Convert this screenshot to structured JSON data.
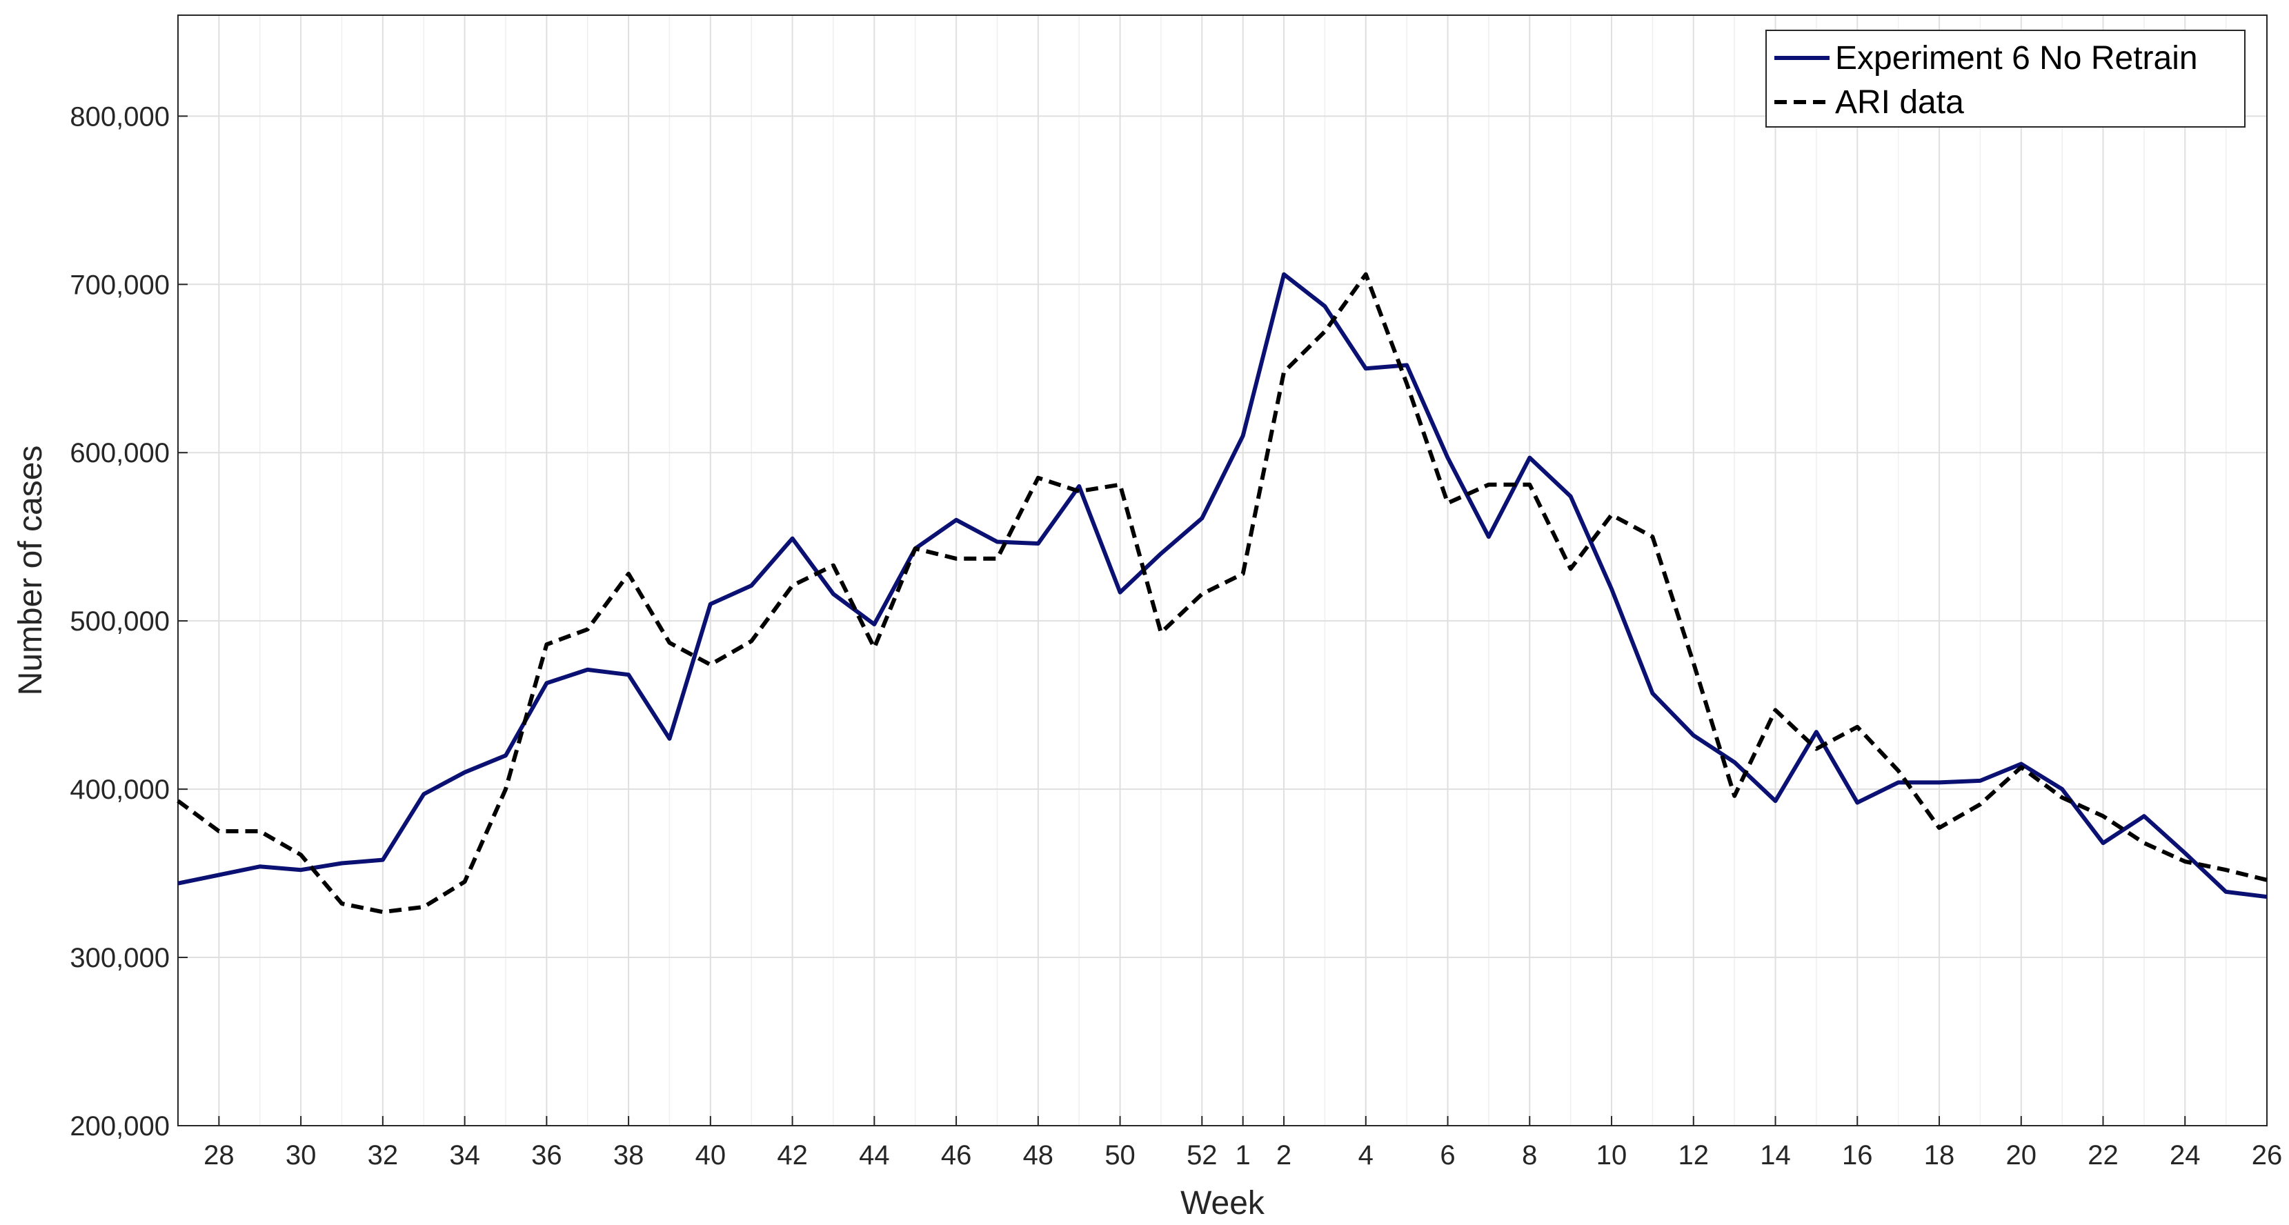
{
  "chart_data": {
    "type": "line",
    "xlabel": "Week",
    "ylabel": "Number of cases",
    "ylim": [
      200000,
      860000
    ],
    "yticks": [
      200000,
      300000,
      400000,
      500000,
      600000,
      700000,
      800000
    ],
    "ytick_labels": [
      "200,000",
      "300,000",
      "400,000",
      "500,000",
      "600,000",
      "700,000",
      "800,000"
    ],
    "x": [
      "27",
      "28",
      "29",
      "30",
      "31",
      "32",
      "33",
      "34",
      "35",
      "36",
      "37",
      "38",
      "39",
      "40",
      "41",
      "42",
      "43",
      "44",
      "45",
      "46",
      "47",
      "48",
      "49",
      "50",
      "51",
      "52",
      "1",
      "2",
      "3",
      "4",
      "5",
      "6",
      "7",
      "8",
      "9",
      "10",
      "11",
      "12",
      "13",
      "14",
      "15",
      "16",
      "17",
      "18",
      "19",
      "20",
      "21",
      "22",
      "23",
      "24",
      "25",
      "26"
    ],
    "xtick_labels": [
      "28",
      "30",
      "32",
      "34",
      "36",
      "38",
      "40",
      "42",
      "44",
      "46",
      "48",
      "50",
      "52",
      "1",
      "2",
      "4",
      "6",
      "8",
      "10",
      "12",
      "14",
      "16",
      "18",
      "20",
      "22",
      "24",
      "26"
    ],
    "grid": true,
    "legend_position": "top-right",
    "series": [
      {
        "name": "Experiment 6 No Retrain",
        "color": "#0a1172",
        "style": "solid",
        "values": [
          344000,
          349000,
          354000,
          352000,
          356000,
          358000,
          397000,
          410000,
          420000,
          463000,
          471000,
          468000,
          430000,
          510000,
          521000,
          549000,
          516000,
          498000,
          543000,
          560000,
          547000,
          546000,
          580000,
          517000,
          540000,
          561000,
          610000,
          706000,
          687000,
          650000,
          652000,
          597000,
          550000,
          597000,
          574000,
          519000,
          457000,
          432000,
          416000,
          393000,
          434000,
          392000,
          404000,
          404000,
          405000,
          415000,
          400000,
          368000,
          384000,
          362000,
          339000,
          336000
        ]
      },
      {
        "name": "ARI data",
        "color": "#000000",
        "style": "dashed",
        "values": [
          393000,
          375000,
          375000,
          361000,
          332000,
          327000,
          330000,
          345000,
          400000,
          486000,
          495000,
          528000,
          487000,
          474000,
          488000,
          521000,
          533000,
          484000,
          543000,
          537000,
          537000,
          585000,
          577000,
          581000,
          493000,
          516000,
          528000,
          648000,
          672000,
          706000,
          641000,
          570000,
          581000,
          581000,
          531000,
          563000,
          550000,
          475000,
          396000,
          447000,
          424000,
          437000,
          411000,
          377000,
          391000,
          413000,
          395000,
          384000,
          368000,
          357000,
          352000,
          346000
        ]
      }
    ]
  }
}
